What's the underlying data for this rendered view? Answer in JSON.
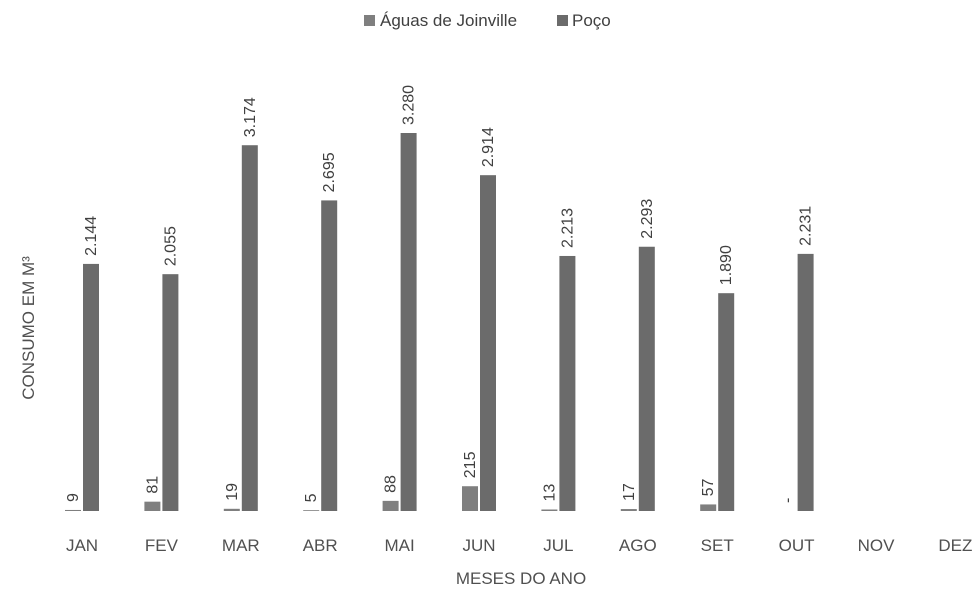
{
  "chart_data": {
    "type": "bar",
    "title": "",
    "xlabel": "MESES DO ANO",
    "ylabel": "CONSUMO EM M³",
    "legend_position": "top-center",
    "grid": false,
    "ylim": [
      0,
      3600
    ],
    "categories": [
      "JAN",
      "FEV",
      "MAR",
      "ABR",
      "MAI",
      "JUN",
      "JUL",
      "AGO",
      "SET",
      "OUT",
      "NOV",
      "DEZ"
    ],
    "series": [
      {
        "name": "Águas de Joinville",
        "color": "#7f7f7f",
        "values": [
          9,
          81,
          19,
          5,
          88,
          215,
          13,
          17,
          57,
          0,
          null,
          null
        ],
        "labels": [
          "9",
          "81",
          "19",
          "5",
          "88",
          "215",
          "13",
          "17",
          "57",
          "-",
          "",
          ""
        ]
      },
      {
        "name": "Poço",
        "color": "#6b6b6b",
        "values": [
          2144,
          2055,
          3174,
          2695,
          3280,
          2914,
          2213,
          2293,
          1890,
          2231,
          null,
          null
        ],
        "labels": [
          "2.144",
          "2.055",
          "3.174",
          "2.695",
          "3.280",
          "2.914",
          "2.213",
          "2.293",
          "1.890",
          "2.231",
          "",
          ""
        ]
      }
    ]
  }
}
